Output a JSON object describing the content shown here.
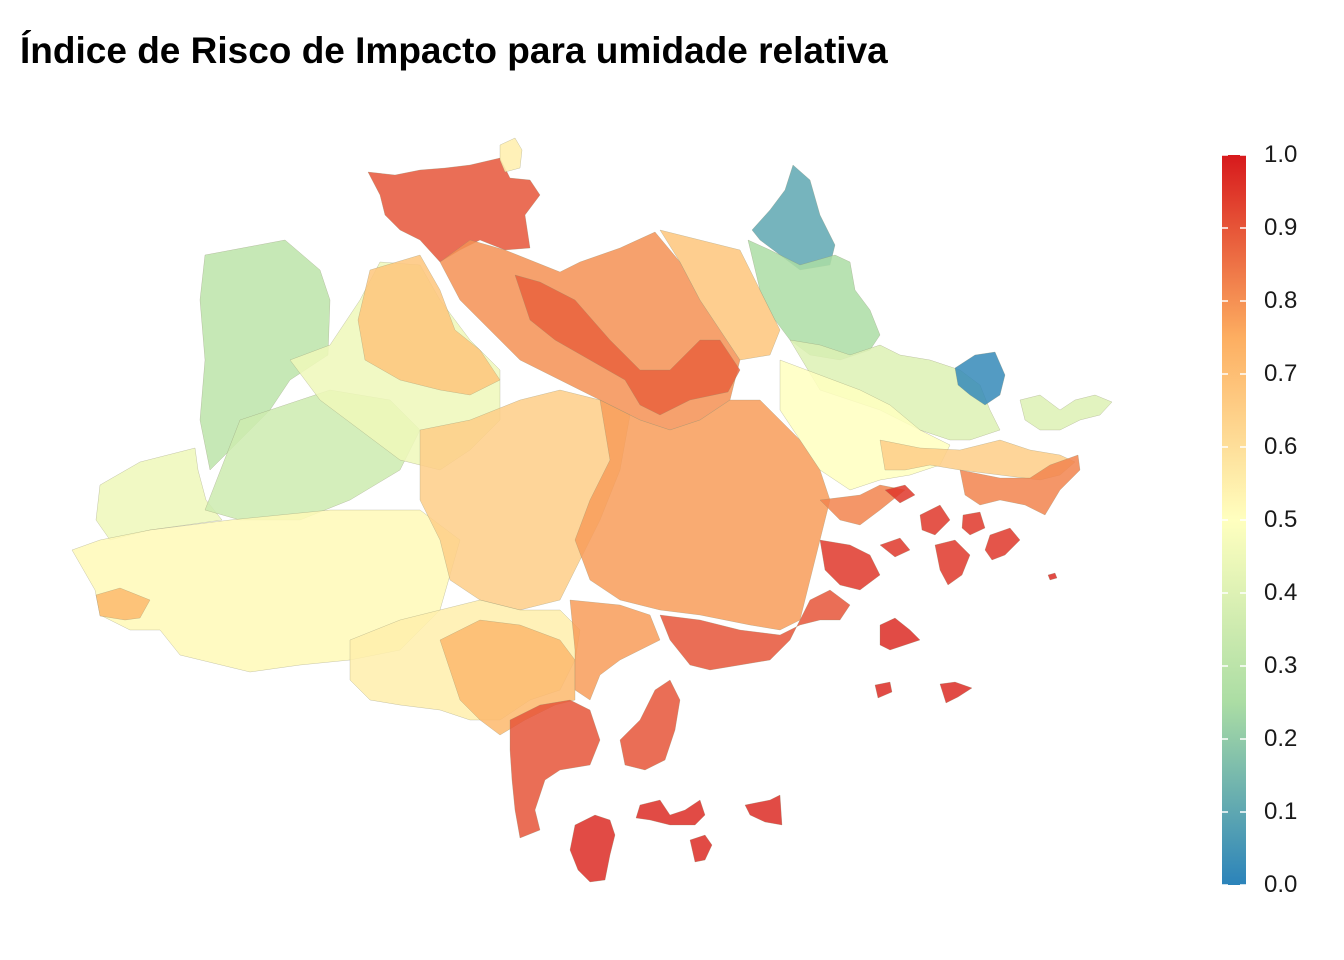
{
  "title": "Índice de Risco de Impacto para umidade relativa",
  "legend": {
    "min": 0,
    "max": 1,
    "ticks": [
      "0.0",
      "0.1",
      "0.2",
      "0.3",
      "0.4",
      "0.5",
      "0.6",
      "0.7",
      "0.8",
      "0.9",
      "1.0"
    ],
    "palette": [
      "#2b83ba",
      "#abdda4",
      "#ffffbf",
      "#fdae61",
      "#d7191c"
    ]
  },
  "regions": [
    {
      "id": "north-tip-yellow",
      "value": 0.55
    },
    {
      "id": "north-red-block",
      "value": 0.9
    },
    {
      "id": "northeast-teal",
      "value": 0.1
    },
    {
      "id": "northeast-green",
      "value": 0.25
    },
    {
      "id": "east-blue-patch",
      "value": 0.02
    },
    {
      "id": "west-green-strip",
      "value": 0.3
    },
    {
      "id": "west-green-lower",
      "value": 0.35
    },
    {
      "id": "west-light",
      "value": 0.45
    },
    {
      "id": "center-west-yellow",
      "value": 0.52
    },
    {
      "id": "north-center-tan",
      "value": 0.68
    },
    {
      "id": "north-center-orange",
      "value": 0.8
    },
    {
      "id": "north-orange-red",
      "value": 0.88
    },
    {
      "id": "center-orange",
      "value": 0.78
    },
    {
      "id": "center-tan",
      "value": 0.65
    },
    {
      "id": "southwest-yellow",
      "value": 0.55
    },
    {
      "id": "southwest-orange",
      "value": 0.72
    },
    {
      "id": "south-red-column",
      "value": 0.9
    },
    {
      "id": "east-yellow",
      "value": 0.5
    },
    {
      "id": "east-light-green",
      "value": 0.4
    },
    {
      "id": "east-orange",
      "value": 0.82
    },
    {
      "id": "southeast-red",
      "value": 0.95
    },
    {
      "id": "islands-red",
      "value": 0.97
    }
  ]
}
